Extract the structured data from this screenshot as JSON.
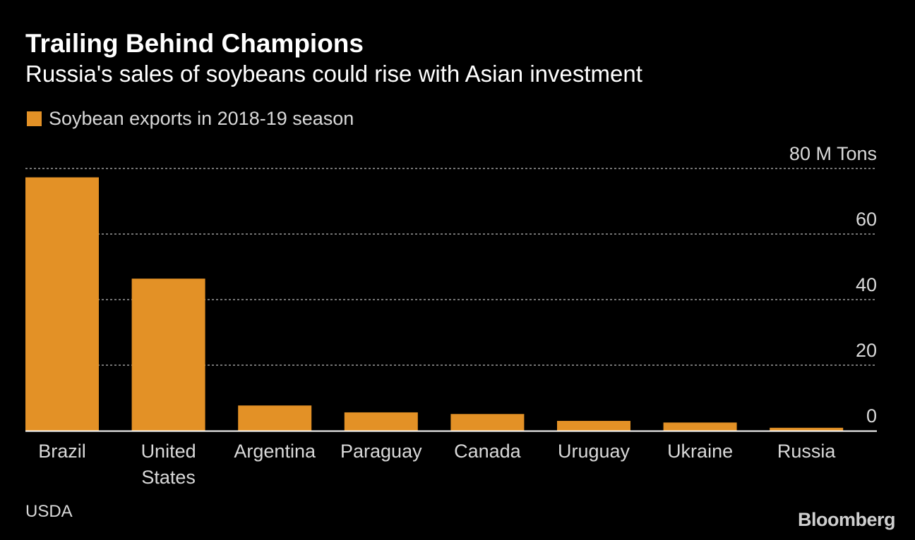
{
  "header": {
    "title": "Trailing Behind Champions",
    "subtitle": "Russia's sales of soybeans could rise with Asian investment"
  },
  "legend": {
    "label": "Soybean exports in 2018-19 season"
  },
  "footer": {
    "source": "USDA",
    "brand": "Bloomberg"
  },
  "colors": {
    "background": "#000000",
    "bar": "#e39126",
    "text": "#ffffff",
    "muted_text": "#d9d9d9",
    "gridline": "#9a9a9a"
  },
  "chart_data": {
    "type": "bar",
    "categories": [
      [
        "Brazil"
      ],
      [
        "United",
        "States"
      ],
      [
        "Argentina"
      ],
      [
        "Paraguay"
      ],
      [
        "Canada"
      ],
      [
        "Uruguay"
      ],
      [
        "Ukraine"
      ],
      [
        "Russia"
      ]
    ],
    "series": [
      {
        "name": "Soybean exports in 2018-19 season",
        "values": [
          77.3,
          46.4,
          7.7,
          5.6,
          5.1,
          3.0,
          2.5,
          0.9
        ]
      }
    ],
    "ylim": [
      0,
      80
    ],
    "yticks": [
      {
        "value": 80,
        "label": "80 M Tons"
      },
      {
        "value": 60,
        "label": "60"
      },
      {
        "value": 40,
        "label": "40"
      },
      {
        "value": 20,
        "label": "20"
      },
      {
        "value": 0,
        "label": "0"
      }
    ],
    "grid": true,
    "legend_position": "top-left",
    "ylabel": "",
    "xlabel": ""
  }
}
